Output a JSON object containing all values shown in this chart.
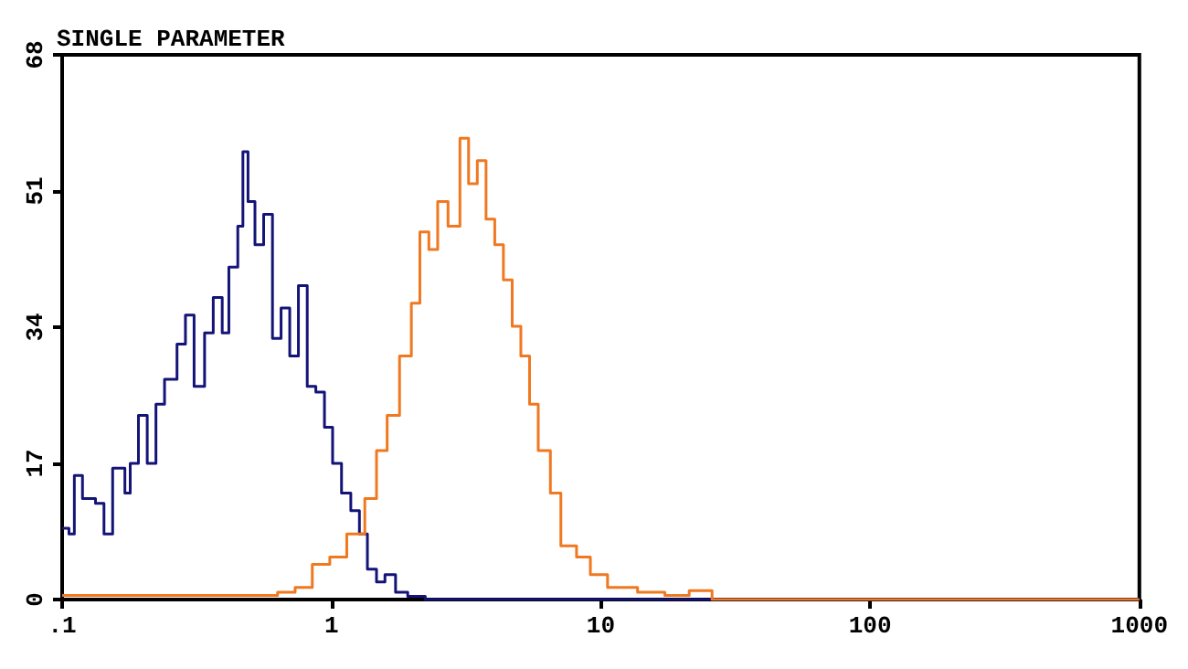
{
  "chart_data": {
    "type": "step",
    "title": "SINGLE PARAMETER",
    "log": "x",
    "xlim": [
      0.1,
      1000
    ],
    "xticks": [
      {
        "value": 0.1,
        "label": ".1"
      },
      1,
      10,
      100,
      1000
    ],
    "ylim": [
      0,
      68
    ],
    "yticks": [
      0,
      17,
      34,
      51,
      68
    ],
    "marker": "none",
    "line_style": "solid",
    "series": [
      {
        "color": "#141478",
        "x": [
          0.1,
          0.106,
          0.111,
          0.119,
          0.133,
          0.143,
          0.154,
          0.171,
          0.179,
          0.192,
          0.207,
          0.223,
          0.24,
          0.267,
          0.287,
          0.309,
          0.338,
          0.364,
          0.393,
          0.416,
          0.449,
          0.469,
          0.49,
          0.52,
          0.56,
          0.604,
          0.65,
          0.7,
          0.754,
          0.813,
          0.875,
          0.942,
          1.01,
          1.09,
          1.18,
          1.27,
          1.36,
          1.47,
          1.58,
          1.73,
          1.92,
          2.23,
          1000
        ],
        "values": [
          8.9,
          8.2,
          15.5,
          12.6,
          12,
          8.2,
          16.4,
          13.3,
          17,
          23,
          17,
          24.4,
          27.5,
          31.9,
          35.5,
          26.6,
          33.3,
          37.7,
          33.3,
          41.5,
          46.6,
          55.9,
          49.7,
          44.3,
          48.1,
          32.6,
          36.4,
          30.4,
          39.2,
          26.6,
          25.9,
          21.5,
          17,
          13.3,
          11.1,
          8.2,
          3.8,
          2.2,
          3.1,
          0.9,
          0.4,
          0,
          0
        ]
      },
      {
        "color": "#f07820",
        "x": [
          0.1,
          0.3,
          0.631,
          0.733,
          0.849,
          0.986,
          1.14,
          1.33,
          1.47,
          1.61,
          1.79,
          1.98,
          2.13,
          2.3,
          2.48,
          2.71,
          3,
          3.23,
          3.48,
          3.75,
          4.04,
          4.35,
          4.69,
          5.05,
          5.44,
          5.86,
          6.5,
          7.11,
          8.13,
          9.15,
          10.6,
          13.7,
          17.3,
          21.3,
          25.9,
          1000
        ],
        "values": [
          0.5,
          0.5,
          0.9,
          1.5,
          4.4,
          5.3,
          8.2,
          12.6,
          18.6,
          23,
          30.4,
          37,
          45.9,
          43.7,
          49.7,
          46.6,
          57.6,
          51.9,
          54.8,
          47.5,
          44.3,
          39.9,
          34.1,
          30.4,
          24.4,
          18.6,
          13.3,
          6.7,
          5.3,
          3.1,
          1.5,
          0.9,
          0.5,
          1.1,
          0,
          0
        ]
      }
    ]
  }
}
